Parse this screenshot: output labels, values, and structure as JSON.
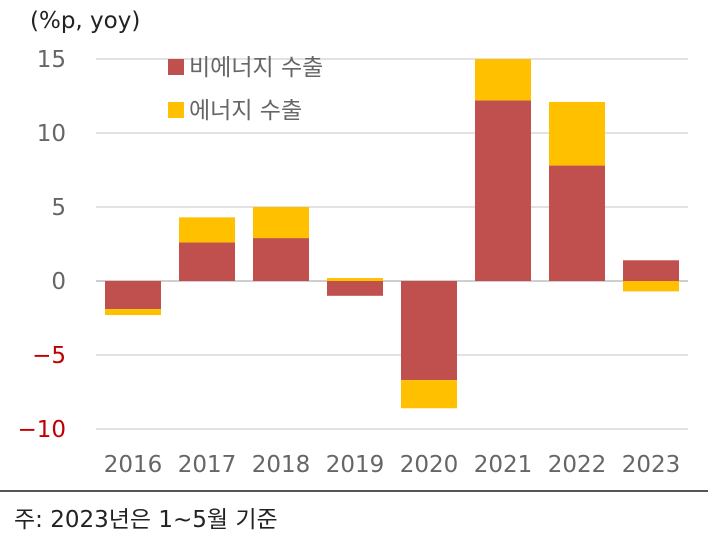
{
  "chart_data": {
    "type": "bar",
    "stacked": true,
    "unit": "(%p, yoy)",
    "categories": [
      "2016",
      "2017",
      "2018",
      "2019",
      "2020",
      "2021",
      "2022",
      "2023"
    ],
    "series": [
      {
        "name": "비에너지 수출",
        "color": "#c0504d",
        "values": [
          -1.9,
          2.6,
          2.9,
          -1.0,
          -6.7,
          12.2,
          7.8,
          1.4
        ]
      },
      {
        "name": "에너지 수출",
        "color": "#ffc000",
        "values": [
          -0.4,
          1.7,
          2.1,
          0.2,
          -1.9,
          2.8,
          4.3,
          -0.7
        ]
      }
    ],
    "ylim": [
      -10,
      15
    ],
    "yticks": [
      15,
      10,
      5,
      0,
      -5,
      -10
    ],
    "negative_tick_color": "#c00000",
    "positive_tick_color": "#666666",
    "grid": true,
    "legend_position": "top-left"
  },
  "footnote": "주: 2023년은  1~5월  기준"
}
